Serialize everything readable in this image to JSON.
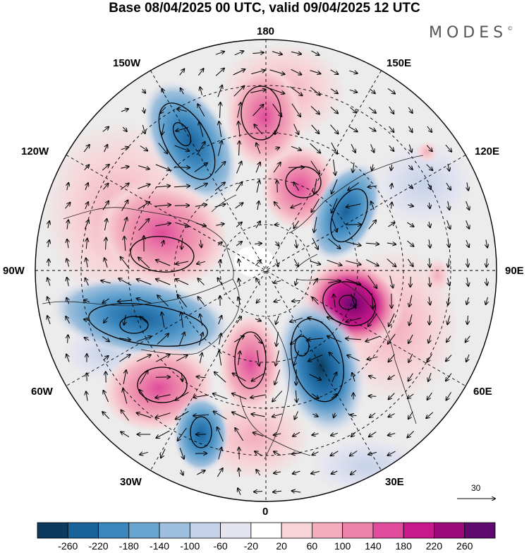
{
  "title": "Base 08/04/2025 00 UTC, valid 09/04/2025 12 UTC",
  "brand": "MODES",
  "brand_mark": "©",
  "meridian_labels": {
    "lon_180": "180",
    "lon_150w": "150W",
    "lon_150e": "150E",
    "lon_120w": "120W",
    "lon_120e": "120E",
    "lon_90w": "90W",
    "lon_90e": "90E",
    "lon_60w": "60W",
    "lon_60e": "60E",
    "lon_30w": "30W",
    "lon_30e": "30E",
    "lon_0": "0"
  },
  "reference_vector": {
    "label": "30"
  },
  "colorbar": {
    "colors": [
      "#0d3a5c",
      "#1a639a",
      "#3a86bd",
      "#6aa6d0",
      "#9ebfdd",
      "#c5d2e8",
      "#e4e4f0",
      "#ffffff",
      "#f7d4d7",
      "#f3adbd",
      "#ec84aa",
      "#e04c9b",
      "#c8198a",
      "#9b0b7a",
      "#5e0a6e"
    ],
    "ticks": [
      "-260",
      "-220",
      "-180",
      "-140",
      "-100",
      "-60",
      "-20",
      "20",
      "60",
      "100",
      "140",
      "180",
      "220",
      "260"
    ]
  }
}
